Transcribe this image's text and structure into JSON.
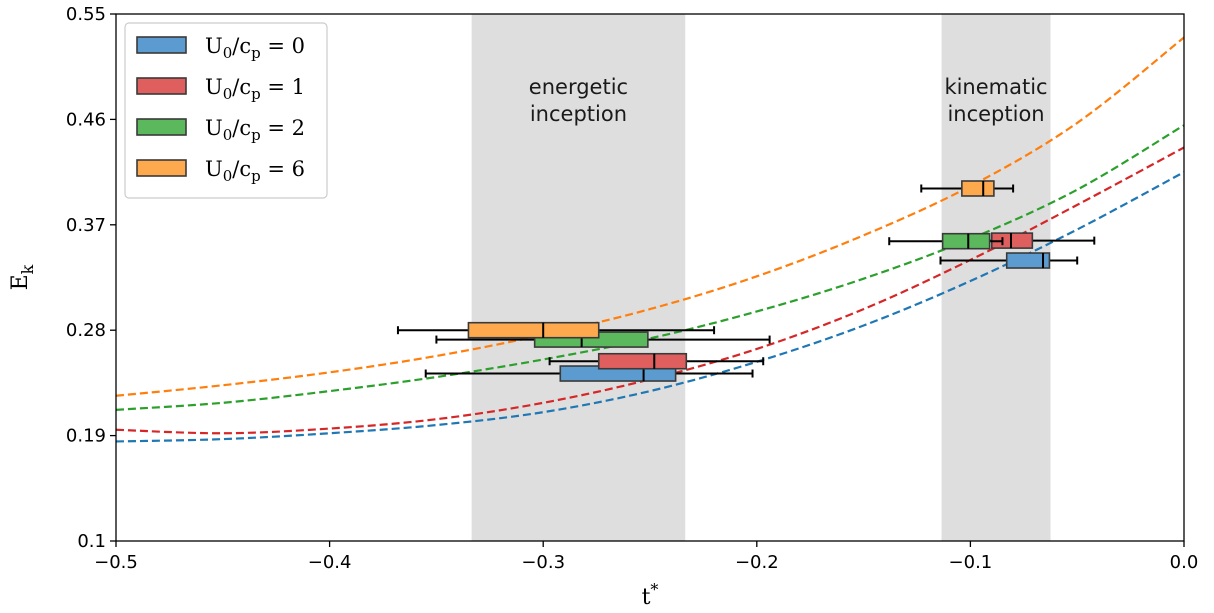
{
  "chart_data": {
    "type": "box-with-curves",
    "xlabel": "t*",
    "ylabel": "E_k",
    "xlim": [
      -0.5,
      0.0
    ],
    "ylim": [
      0.1,
      0.55
    ],
    "xticks": [
      -0.5,
      -0.4,
      -0.3,
      -0.2,
      -0.1,
      0.0
    ],
    "xtick_labels": [
      "−0.5",
      "−0.4",
      "−0.3",
      "−0.2",
      "−0.1",
      "0.0"
    ],
    "yticks": [
      0.1,
      0.19,
      0.28,
      0.37,
      0.46,
      0.55
    ],
    "ytick_labels": [
      "0.1",
      "0.19",
      "0.28",
      "0.37",
      "0.46",
      "0.55"
    ],
    "grid": false,
    "legend_position": "top-left",
    "shaded_regions": [
      {
        "label_line1": "energetic",
        "label_line2": "inception",
        "x0": -0.3335,
        "x1": -0.2335
      },
      {
        "label_line1": "kinematic",
        "label_line2": "inception",
        "x0": -0.1135,
        "x1": -0.0625
      }
    ],
    "series": [
      {
        "name": "U0/cp = 0",
        "legend_main": "U",
        "legend_sub1": "0",
        "legend_slash": "/c",
        "legend_sub2": "p",
        "legend_eq": " = 0",
        "color": "#1f77b4",
        "box_fill": "#5b9bd0",
        "curve": {
          "x": [
            -0.5,
            -0.45,
            -0.4,
            -0.35,
            -0.3,
            -0.25,
            -0.2,
            -0.15,
            -0.1,
            -0.05,
            0.0
          ],
          "y": [
            0.185,
            0.187,
            0.192,
            0.199,
            0.21,
            0.228,
            0.253,
            0.284,
            0.322,
            0.366,
            0.415
          ]
        },
        "boxes": [
          {
            "q1": -0.292,
            "median": -0.253,
            "q3": -0.238,
            "whisker_low": -0.355,
            "whisker_high": -0.202,
            "y": 0.243
          },
          {
            "q1": -0.083,
            "median": -0.066,
            "q3": -0.063,
            "whisker_low": -0.114,
            "whisker_high": -0.05,
            "y": 0.3395
          }
        ]
      },
      {
        "name": "U0/cp = 1",
        "legend_main": "U",
        "legend_sub1": "0",
        "legend_slash": "/c",
        "legend_sub2": "p",
        "legend_eq": " = 1",
        "color": "#d62728",
        "box_fill": "#df5f5f",
        "curve": {
          "x": [
            -0.5,
            -0.45,
            -0.4,
            -0.35,
            -0.3,
            -0.25,
            -0.2,
            -0.15,
            -0.1,
            -0.05,
            0.0
          ],
          "y": [
            0.195,
            0.192,
            0.196,
            0.204,
            0.218,
            0.238,
            0.264,
            0.298,
            0.34,
            0.387,
            0.436
          ]
        },
        "boxes": [
          {
            "q1": -0.274,
            "median": -0.248,
            "q3": -0.233,
            "whisker_low": -0.297,
            "whisker_high": -0.197,
            "y": 0.2535
          },
          {
            "q1": -0.09,
            "median": -0.081,
            "q3": -0.071,
            "whisker_low": -0.102,
            "whisker_high": -0.042,
            "y": 0.3565
          }
        ]
      },
      {
        "name": "U0/cp = 2",
        "legend_main": "U",
        "legend_sub1": "0",
        "legend_slash": "/c",
        "legend_sub2": "p",
        "legend_eq": " = 2",
        "color": "#2ca02c",
        "box_fill": "#5cb85c",
        "curve": {
          "x": [
            -0.5,
            -0.45,
            -0.4,
            -0.35,
            -0.3,
            -0.25,
            -0.2,
            -0.15,
            -0.1,
            -0.05,
            0.0
          ],
          "y": [
            0.212,
            0.218,
            0.228,
            0.24,
            0.255,
            0.273,
            0.296,
            0.324,
            0.358,
            0.4,
            0.455
          ]
        },
        "boxes": [
          {
            "q1": -0.304,
            "median": -0.282,
            "q3": -0.251,
            "whisker_low": -0.35,
            "whisker_high": -0.194,
            "y": 0.272
          },
          {
            "q1": -0.113,
            "median": -0.101,
            "q3": -0.091,
            "whisker_low": -0.138,
            "whisker_high": -0.085,
            "y": 0.356
          }
        ]
      },
      {
        "name": "U0/cp = 6",
        "legend_main": "U",
        "legend_sub1": "0",
        "legend_slash": "/c",
        "legend_sub2": "p",
        "legend_eq": " = 6",
        "color": "#ff7f0e",
        "box_fill": "#ffa94f",
        "curve": {
          "x": [
            -0.5,
            -0.45,
            -0.4,
            -0.35,
            -0.3,
            -0.25,
            -0.2,
            -0.15,
            -0.1,
            -0.05,
            0.0
          ],
          "y": [
            0.224,
            0.233,
            0.244,
            0.258,
            0.276,
            0.298,
            0.326,
            0.361,
            0.403,
            0.457,
            0.53
          ]
        },
        "boxes": [
          {
            "q1": -0.335,
            "median": -0.3,
            "q3": -0.274,
            "whisker_low": -0.368,
            "whisker_high": -0.22,
            "y": 0.28
          },
          {
            "q1": -0.104,
            "median": -0.094,
            "q3": -0.089,
            "whisker_low": -0.123,
            "whisker_high": -0.08,
            "y": 0.401
          }
        ]
      }
    ]
  }
}
